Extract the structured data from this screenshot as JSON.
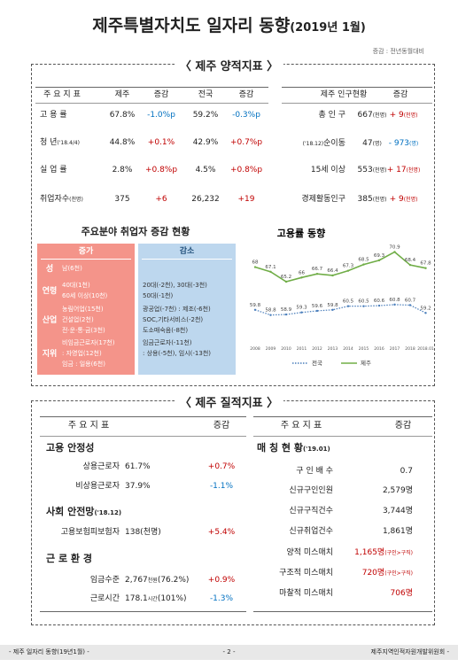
{
  "header": {
    "title": "제주특별자치도 일자리 동향",
    "title_suffix": "(2019년 1월)",
    "note": "증감 : 전년동월대비"
  },
  "quantitative": {
    "heading": "〈 제주 양적지표 〉",
    "indicators": {
      "columns": [
        "주 요 지 표",
        "제주",
        "증감",
        "전국",
        "증감"
      ],
      "rows": [
        [
          "고 용 률",
          "67.8%",
          "-1.0%p",
          "59.2%",
          "-0.3%p"
        ],
        [
          {
            "text": "청 년",
            "small": "('18.4/4)"
          },
          "44.8%",
          "+0.1%",
          "42.9%",
          "+0.7%p"
        ],
        [
          "실 업 률",
          "2.8%",
          "+0.8%p",
          "4.5%",
          "+0.8%p"
        ],
        [
          {
            "text": "취업자수",
            "small": "(천명)"
          },
          "375",
          "+6",
          "26,232",
          "+19"
        ]
      ]
    },
    "population": {
      "columns": [
        "제주 인구현황",
        "증감"
      ],
      "rows": [
        [
          "총 인 구",
          {
            "text": "667",
            "small": "(천명)"
          },
          {
            "text": "+ 9",
            "small": "(천명)"
          }
        ],
        [
          {
            "prefix": "('18.12)",
            "text": "순이동"
          },
          {
            "text": "47",
            "small": "(명)"
          },
          {
            "text": "- 973",
            "small": "(명)"
          }
        ],
        [
          "15세 이상",
          {
            "text": "553",
            "small": "(천명)"
          },
          {
            "text": "+ 17",
            "small": "(천명)"
          }
        ],
        [
          "경제활동인구",
          {
            "text": "385",
            "small": "(천명)"
          },
          {
            "text": "+ 9",
            "small": "(천명)"
          }
        ]
      ]
    },
    "sectors": {
      "title": "주요분야 취업자 증감 현황",
      "increase": {
        "heading": "증가",
        "groups": [
          {
            "label": "성",
            "lines": [
              "남(6천)"
            ]
          },
          {
            "label": "연령",
            "lines": [
              "40대(1천)",
              "60세 이상(10천)"
            ]
          },
          {
            "label": "산업",
            "lines": [
              "농림어업(15천)",
              "건설업(2천)",
              "전·운·통·금(3천)"
            ]
          },
          {
            "label": "지위",
            "lines": [
              "비임금근로자(17천)",
              ": 자영업(12천)",
              "임금 : 일용(6천)"
            ]
          }
        ]
      },
      "decrease": {
        "heading": "감소",
        "groups": [
          [
            "20대(-2천), 30대(-3천)",
            "50대(-1천)"
          ],
          [
            "광공업(-7천) : 제조(-6천)",
            "SOC,기타서비스(-2천)",
            "도소매숙음(-8천)"
          ],
          [
            "임금근로자(-11천)",
            ": 상용(-5천), 임시(-13천)"
          ]
        ]
      }
    },
    "employment_chart": {
      "type": "line",
      "title": "고용률 동향",
      "categories": [
        "2008",
        "2009",
        "2010",
        "2011",
        "2012",
        "2013",
        "2014",
        "2015",
        "2016",
        "2017",
        "2018",
        "2018.01"
      ],
      "series": [
        {
          "name": "전국",
          "color": "#4a7ebb",
          "values": [
            59.8,
            58.8,
            58.9,
            59.3,
            59.6,
            59.8,
            60.5,
            60.5,
            60.6,
            60.8,
            60.7,
            59.2
          ]
        },
        {
          "name": "제주",
          "color": "#70ad47",
          "values": [
            68.0,
            67.1,
            65.2,
            66.0,
            66.7,
            66.4,
            67.3,
            68.5,
            69.3,
            70.9,
            68.4,
            67.8
          ]
        }
      ],
      "ylim": [
        55,
        72
      ]
    }
  },
  "qualitative": {
    "heading": "〈 제주 질적지표 〉",
    "left": {
      "columns": [
        "주 요 지 표",
        "증감"
      ],
      "sections": [
        {
          "title": "고용 안정성",
          "rows": [
            [
              "상용근로자",
              "61.7%",
              "+0.7%"
            ],
            [
              "비상용근로자",
              "37.9%",
              "-1.1%"
            ]
          ]
        },
        {
          "title": "사회 안전망",
          "title_small": "('18.12)",
          "rows": [
            [
              "고용보험피보험자",
              "138(천명)",
              "+5.4%"
            ]
          ]
        },
        {
          "title": "근 로 환 경",
          "rows": [
            [
              "임금수준",
              {
                "text": "2,767",
                "small": "천원",
                "after": "(76.2%)"
              },
              "+0.9%"
            ],
            [
              "근로시간",
              {
                "text": "178.1",
                "small": "시간",
                "after": "(101%)"
              },
              "-1.3%"
            ]
          ]
        }
      ]
    },
    "right": {
      "columns": [
        "주 요 지 표",
        "증감"
      ],
      "section": "매 칭 현 황",
      "section_small": "('19.01)",
      "rows": [
        [
          "구 인 배 수",
          "0.7"
        ],
        [
          "신규구인인원",
          "2,579명"
        ],
        [
          "신규구직건수",
          "3,744명"
        ],
        [
          "신규취업건수",
          "1,861명"
        ],
        [
          "양적 미스매치",
          {
            "text": "1,165명",
            "small": "(구인>구직)",
            "color": "#c00000"
          }
        ],
        [
          "구조적 미스매치",
          {
            "text": "720명",
            "small": "(구인>구직)",
            "color": "#c00000"
          }
        ],
        [
          "마찰적 미스매치",
          {
            "text": "706명",
            "color": "#c00000"
          }
        ]
      ]
    }
  },
  "footer": {
    "left": "- 제주 일자리 동향(19년1월) -",
    "center": "- 2 -",
    "right": "제주지역인적자원개발위원회 -"
  }
}
